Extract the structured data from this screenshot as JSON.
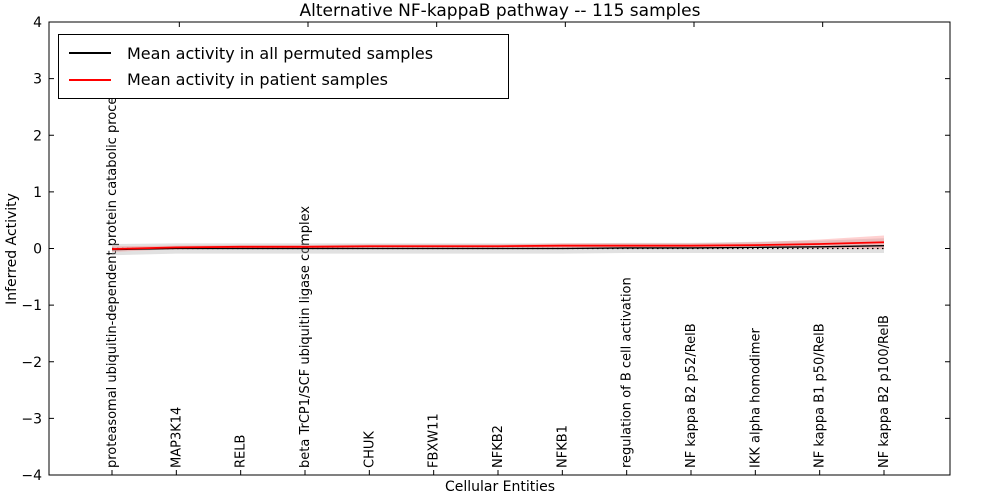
{
  "figure": {
    "title": "Alternative NF-kappaB pathway -- 115 samples",
    "xlabel": "Cellular Entities",
    "ylabel": "Inferred Activity"
  },
  "legend": {
    "position": "upper left",
    "entries": [
      {
        "label": "Mean activity in all permuted samples",
        "color": "#000000"
      },
      {
        "label": "Mean activity in patient samples",
        "color": "#ff0000"
      }
    ]
  },
  "colors": {
    "frame": "#000000",
    "background": "#ffffff",
    "permuted_line": "#000000",
    "patient_line": "#ff0000",
    "permuted_band": "#aaaaaa",
    "patient_band": "#ff6666",
    "zero_line": "#000000"
  },
  "chart_data": {
    "type": "line",
    "title": "Alternative NF-kappaB pathway -- 115 samples",
    "xlabel": "Cellular Entities",
    "ylabel": "Inferred Activity",
    "ylim": [
      -4,
      4
    ],
    "yticks": [
      4,
      3,
      2,
      1,
      0,
      -1,
      -2,
      -3,
      -4
    ],
    "grid": false,
    "legend_position": "upper left",
    "categories": [
      "proteasomal ubiquitin-dependent protein catabolic process",
      "MAP3K14",
      "RELB",
      "beta TrCP1/SCF ubiquitin ligase complex",
      "CHUK",
      "FBXW11",
      "NFKB2",
      "NFKB1",
      "regulation of B cell activation",
      "NF kappa B2 p52/RelB",
      "IKK alpha homodimer",
      "NF kappa B1 p50/RelB",
      "NF kappa B2 p100/RelB"
    ],
    "top_tick_category_indices": [
      1,
      3,
      5,
      7,
      9,
      11
    ],
    "reference_line": {
      "y": 0,
      "style": "dotted",
      "color": "#000000"
    },
    "series": [
      {
        "name": "Mean activity in all permuted samples",
        "color": "#000000",
        "line_width": 1.3,
        "values": [
          -0.02,
          0.0,
          0.0,
          0.0,
          0.0,
          0.0,
          0.0,
          0.0,
          0.01,
          0.01,
          0.02,
          0.03,
          0.05
        ],
        "band_halfwidth": [
          0.1,
          0.09,
          0.09,
          0.09,
          0.09,
          0.09,
          0.09,
          0.09,
          0.09,
          0.09,
          0.1,
          0.11,
          0.13
        ],
        "band_color": "#aaaaaa",
        "band_opacity": 0.35
      },
      {
        "name": "Mean activity in patient samples",
        "color": "#ff0000",
        "line_width": 1.8,
        "values": [
          -0.01,
          0.02,
          0.03,
          0.03,
          0.04,
          0.04,
          0.04,
          0.05,
          0.05,
          0.05,
          0.06,
          0.08,
          0.11
        ],
        "band_halfwidth": [
          0.05,
          0.03,
          0.03,
          0.03,
          0.03,
          0.03,
          0.03,
          0.04,
          0.04,
          0.04,
          0.05,
          0.08,
          0.12
        ],
        "band_color": "#ff6666",
        "band_opacity": 0.3
      }
    ]
  }
}
